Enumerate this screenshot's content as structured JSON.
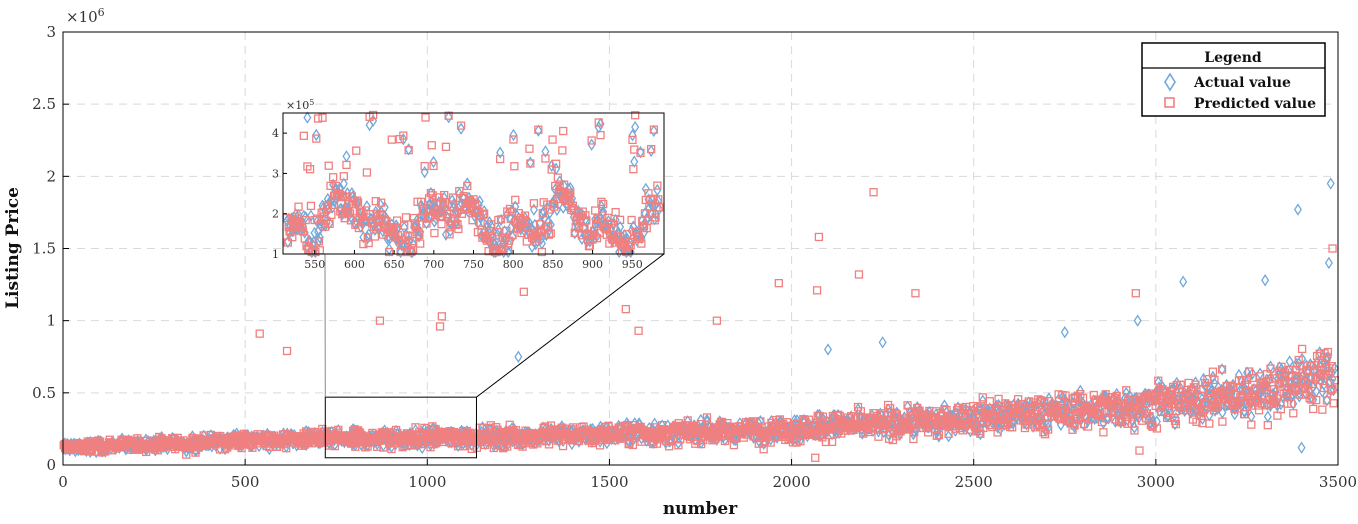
{
  "chart_data": {
    "type": "scatter",
    "xlabel": "number",
    "ylabel": "Listing Price",
    "y_exponent_label": "×10",
    "y_exponent_power": "6",
    "xlim": [
      0,
      3500
    ],
    "ylim": [
      0,
      3000000
    ],
    "xticks": [
      0,
      500,
      1000,
      1500,
      2000,
      2500,
      3000,
      3500
    ],
    "xtick_labels": [
      "0",
      "500",
      "1000",
      "1500",
      "2000",
      "2500",
      "3000",
      "3500"
    ],
    "yticks": [
      0,
      500000,
      1000000,
      1500000,
      2000000,
      2500000,
      3000000
    ],
    "ytick_labels": [
      "0",
      "0.5",
      "1",
      "1.5",
      "2",
      "2.5",
      "3"
    ],
    "grid": true,
    "legend": {
      "title": "Legend",
      "placement": "top-right",
      "entries": [
        "Actual value",
        "Predicted value"
      ]
    },
    "series": [
      {
        "name": "Actual value",
        "marker": "diamond",
        "color": "#6fa8dc"
      },
      {
        "name": "Predicted value",
        "marker": "square",
        "color": "#f08080"
      }
    ],
    "trend": {
      "x": [
        0,
        500,
        1000,
        1500,
        2000,
        2500,
        3000,
        3300,
        3500
      ],
      "y": [
        120000,
        170000,
        190000,
        210000,
        250000,
        320000,
        420000,
        500000,
        650000
      ]
    },
    "outliers": {
      "actual": [
        [
          1250,
          750000
        ],
        [
          2100,
          800000
        ],
        [
          2250,
          850000
        ],
        [
          2750,
          920000
        ],
        [
          2950,
          1000000
        ],
        [
          3075,
          1270000
        ],
        [
          3300,
          1280000
        ],
        [
          3390,
          1770000
        ],
        [
          3480,
          1950000
        ],
        [
          3475,
          1400000
        ],
        [
          3400,
          120000
        ]
      ],
      "predicted": [
        [
          540,
          910000
        ],
        [
          615,
          790000
        ],
        [
          870,
          1000000
        ],
        [
          1040,
          1030000
        ],
        [
          1035,
          960000
        ],
        [
          1265,
          1200000
        ],
        [
          1545,
          1080000
        ],
        [
          1580,
          930000
        ],
        [
          1795,
          1000000
        ],
        [
          1965,
          1260000
        ],
        [
          2075,
          1580000
        ],
        [
          2070,
          1210000
        ],
        [
          2185,
          1320000
        ],
        [
          2225,
          1890000
        ],
        [
          2340,
          1190000
        ],
        [
          2945,
          1190000
        ],
        [
          3485,
          1500000
        ],
        [
          2065,
          50000
        ],
        [
          2955,
          100000
        ]
      ]
    },
    "inset": {
      "xlim": [
        510,
        990
      ],
      "ylim": [
        100000,
        450000
      ],
      "xticks": [
        550,
        600,
        650,
        700,
        750,
        800,
        850,
        900,
        950
      ],
      "xtick_labels": [
        "550",
        "600",
        "650",
        "700",
        "750",
        "800",
        "850",
        "900",
        "950"
      ],
      "yticks": [
        100000,
        200000,
        300000,
        400000
      ],
      "ytick_labels": [
        "1",
        "2",
        "3",
        "4"
      ],
      "y_exponent_label": "×10",
      "y_exponent_power": "5",
      "zoom_box_x": [
        720,
        1135
      ],
      "zoom_box_y": [
        50000,
        470000
      ]
    }
  }
}
